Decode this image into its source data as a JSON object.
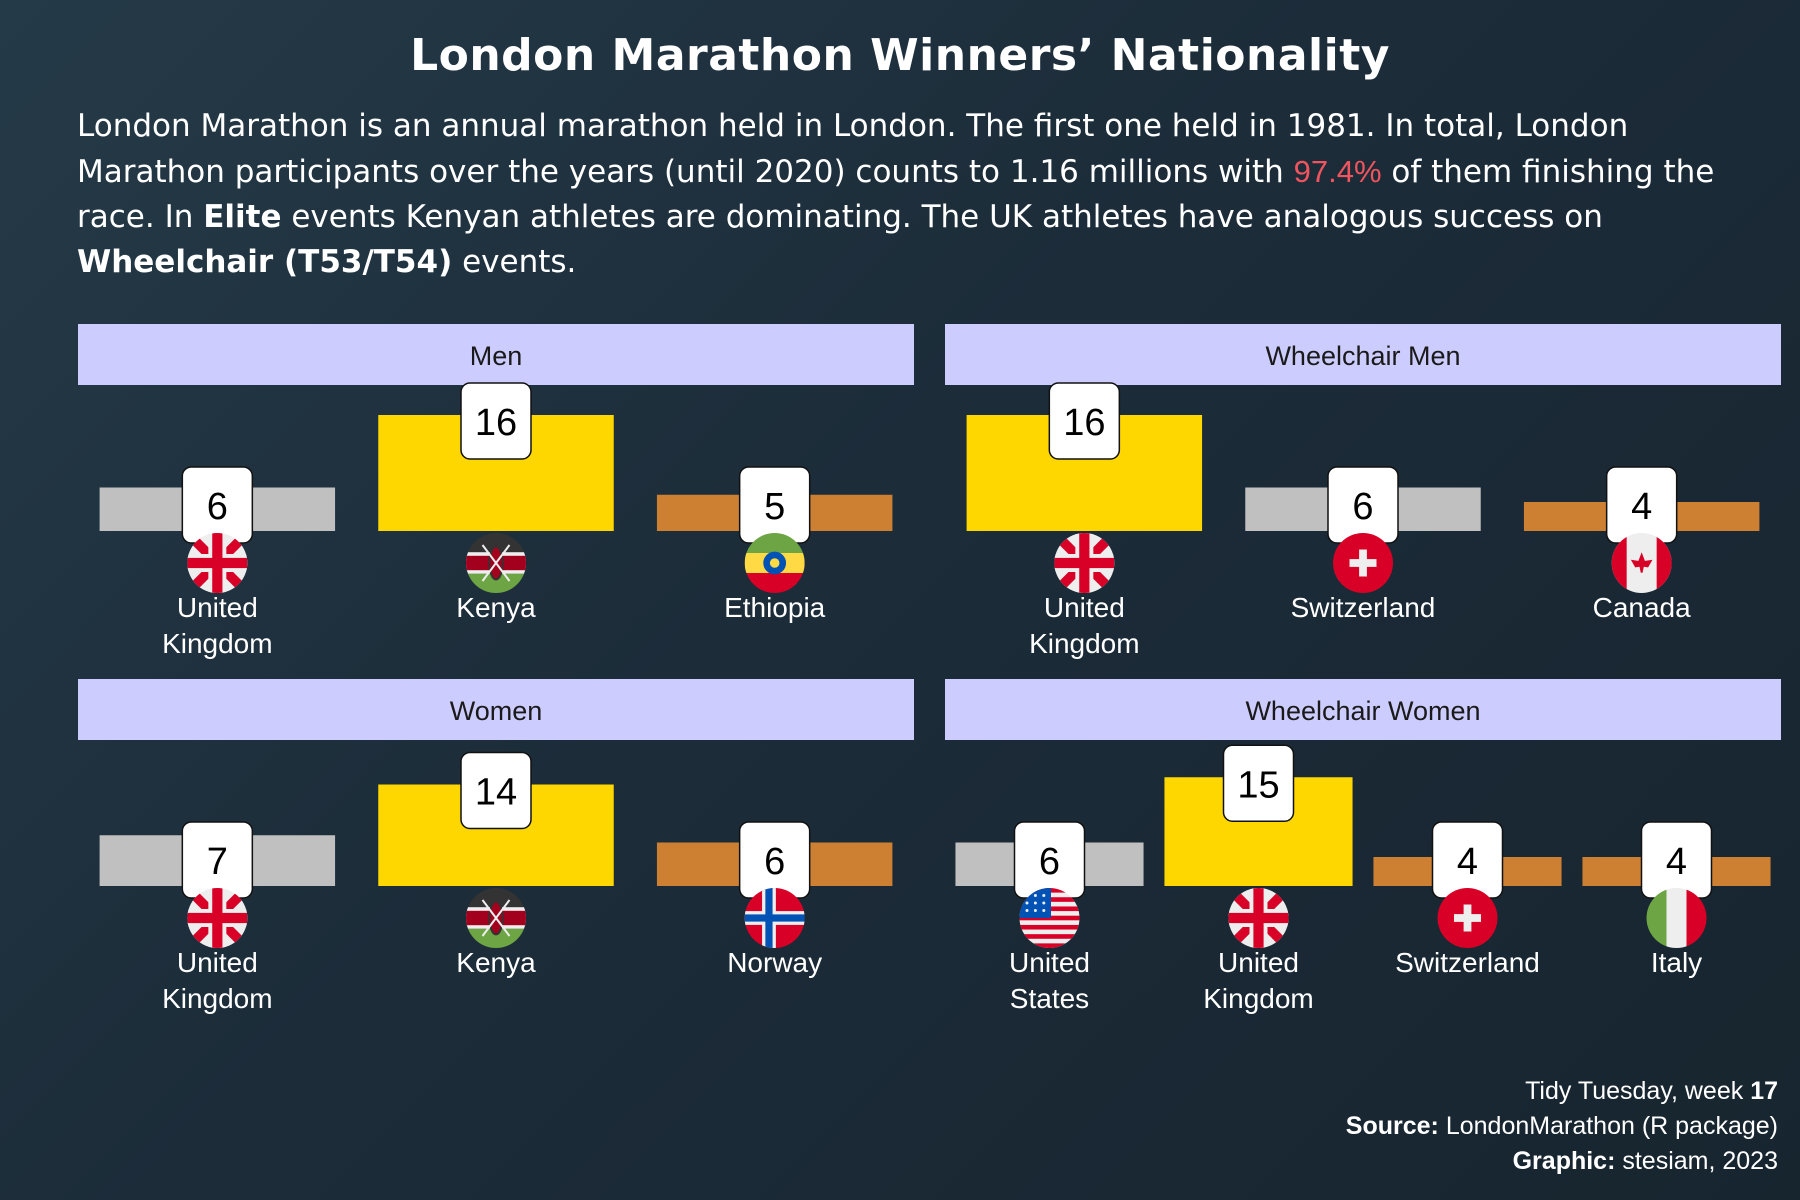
{
  "title": "London Marathon Winners’ Nationality",
  "subtitle": {
    "p1": "London Marathon is an annual marathon held in London. The first one held in 1981. In total, London Marathon participants over the years (until 2020) counts to 1.16 millions with ",
    "pct": "97.4%",
    "p2": " of them finishing the race. In ",
    "elite": "Elite",
    "p3": " events Kenyan athletes are dominating. The UK athletes have analogous success on ",
    "wheel": "Wheelchair (T53/T54)",
    "p4": " events."
  },
  "caption": {
    "l1": "Tidy Tuesday, week ",
    "week": "17",
    "src_label": "Source:",
    "src": " LondonMarathon (R package)",
    "gfx_label": "Graphic:",
    "gfx": " stesiam, 2023"
  },
  "colors": {
    "gold": "#ffd700",
    "silver": "#c0c0c0",
    "bronze": "#cd7f32",
    "strip": "#ccccff",
    "highlight": "#f0545e"
  },
  "chart_data": [
    {
      "type": "bar",
      "title": "Men",
      "categories": [
        "United Kingdom",
        "Kenya",
        "Ethiopia"
      ],
      "labels": [
        [
          "United",
          "Kingdom"
        ],
        [
          "Kenya"
        ],
        [
          "Ethiopia"
        ]
      ],
      "values": [
        6,
        16,
        5
      ],
      "medals": [
        "silver",
        "gold",
        "bronze"
      ],
      "flags": [
        "uk-flag-icon",
        "kenya-flag-icon",
        "ethiopia-flag-icon"
      ]
    },
    {
      "type": "bar",
      "title": "Wheelchair Men",
      "categories": [
        "United Kingdom",
        "Switzerland",
        "Canada"
      ],
      "labels": [
        [
          "United",
          "Kingdom"
        ],
        [
          "Switzerland"
        ],
        [
          "Canada"
        ]
      ],
      "values": [
        16,
        6,
        4
      ],
      "medals": [
        "gold",
        "silver",
        "bronze"
      ],
      "flags": [
        "uk-flag-icon",
        "switzerland-flag-icon",
        "canada-flag-icon"
      ]
    },
    {
      "type": "bar",
      "title": "Women",
      "categories": [
        "United Kingdom",
        "Kenya",
        "Norway"
      ],
      "labels": [
        [
          "United",
          "Kingdom"
        ],
        [
          "Kenya"
        ],
        [
          "Norway"
        ]
      ],
      "values": [
        7,
        14,
        6
      ],
      "medals": [
        "silver",
        "gold",
        "bronze"
      ],
      "flags": [
        "uk-flag-icon",
        "kenya-flag-icon",
        "norway-flag-icon"
      ]
    },
    {
      "type": "bar",
      "title": "Wheelchair Women",
      "categories": [
        "United States",
        "United Kingdom",
        "Switzerland",
        "Italy"
      ],
      "labels": [
        [
          "United",
          "States"
        ],
        [
          "United",
          "Kingdom"
        ],
        [
          "Switzerland"
        ],
        [
          "Italy"
        ]
      ],
      "values": [
        6,
        15,
        4,
        4
      ],
      "medals": [
        "silver",
        "gold",
        "bronze",
        "bronze"
      ],
      "flags": [
        "usa-flag-icon",
        "uk-flag-icon",
        "switzerland-flag-icon",
        "italy-flag-icon"
      ]
    }
  ]
}
